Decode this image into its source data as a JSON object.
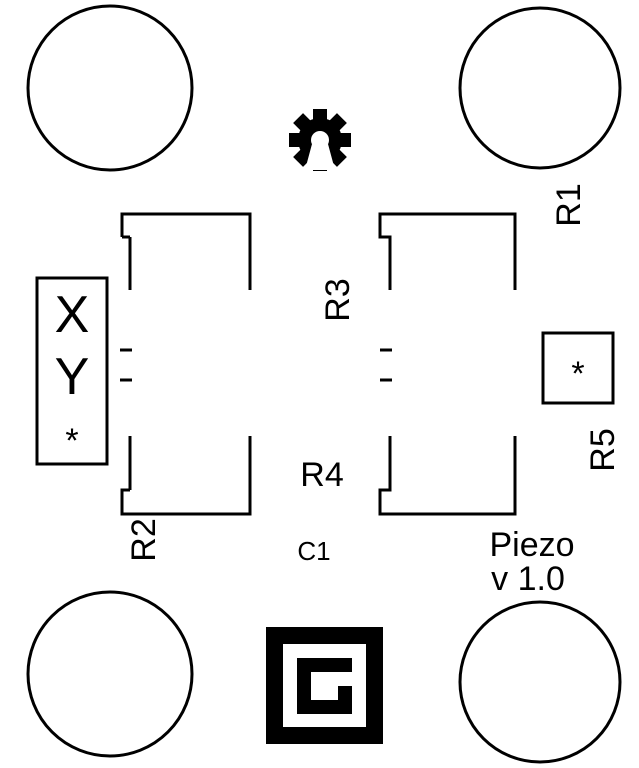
{
  "labels": {
    "r1": "R1",
    "r2": "R2",
    "r3": "R3",
    "r4": "R4",
    "r5": "R5",
    "c1": "C1",
    "x": "X",
    "y": "Y",
    "star_left": "*",
    "star_right": "*",
    "board_name": "Piezo",
    "board_version": "v 1.0"
  },
  "icons": {
    "gear": "open-hardware-gear-icon",
    "logo": "g-logo-icon"
  },
  "colors": {
    "silkscreen": "#000000",
    "background": "#ffffff"
  }
}
